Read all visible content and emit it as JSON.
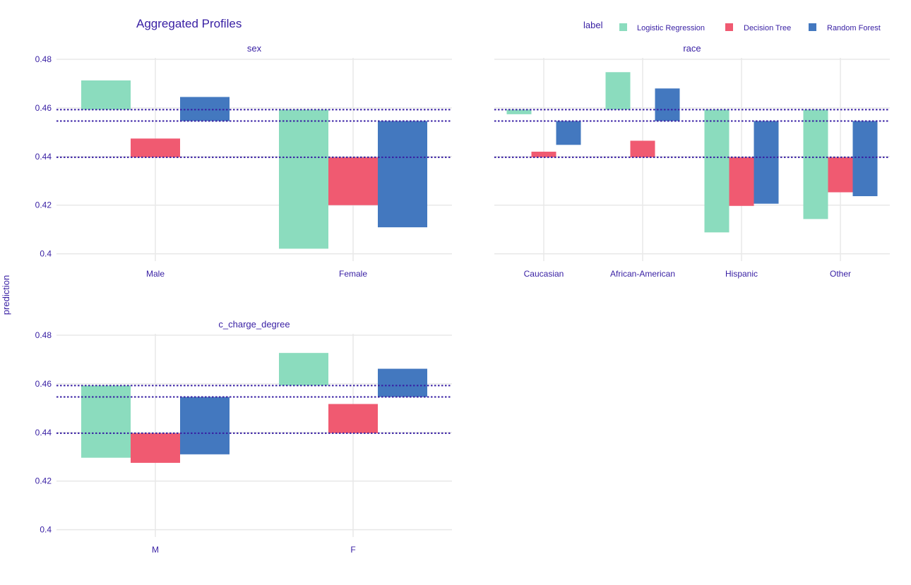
{
  "chart_data": {
    "type": "bar",
    "title": "Aggregated Profiles",
    "ylabel": "prediction",
    "ylim": [
      0.397,
      0.48
    ],
    "yticks": [
      0.4,
      0.42,
      0.44,
      0.46,
      0.48
    ],
    "ytick_labels": [
      "0.4",
      "0.42",
      "0.44",
      "0.46",
      "0.48"
    ],
    "grid": true,
    "legend": {
      "title": "label",
      "placement": "top-right",
      "entries": [
        "Logistic Regression",
        "Decision Tree",
        "Random Forest"
      ]
    },
    "series_colors": {
      "Logistic Regression": "#8bdcbe",
      "Decision Tree": "#f05a71",
      "Random Forest": "#4378bf"
    },
    "baselines": {
      "Logistic Regression": 0.4593,
      "Decision Tree": 0.4397,
      "Random Forest": 0.4546
    },
    "panels": [
      {
        "title": "sex",
        "categories": [
          "Male",
          "Female"
        ],
        "series": [
          {
            "name": "Logistic Regression",
            "values": [
              0.4713,
              0.4021
            ]
          },
          {
            "name": "Decision Tree",
            "values": [
              0.4474,
              0.42
            ]
          },
          {
            "name": "Random Forest",
            "values": [
              0.4645,
              0.4109
            ]
          }
        ]
      },
      {
        "title": "race",
        "categories": [
          "Caucasian",
          "African-American",
          "Hispanic",
          "Other"
        ],
        "series": [
          {
            "name": "Logistic Regression",
            "values": [
              0.4574,
              0.4747,
              0.4088,
              0.4143
            ]
          },
          {
            "name": "Decision Tree",
            "values": [
              0.442,
              0.4465,
              0.4197,
              0.4253
            ]
          },
          {
            "name": "Random Forest",
            "values": [
              0.4448,
              0.468,
              0.4206,
              0.4237
            ]
          }
        ]
      },
      {
        "title": "c_charge_degree",
        "categories": [
          "M",
          "F"
        ],
        "series": [
          {
            "name": "Logistic Regression",
            "values": [
              0.4296,
              0.4727
            ]
          },
          {
            "name": "Decision Tree",
            "values": [
              0.4275,
              0.4517
            ]
          },
          {
            "name": "Random Forest",
            "values": [
              0.431,
              0.4662
            ]
          }
        ]
      }
    ]
  }
}
